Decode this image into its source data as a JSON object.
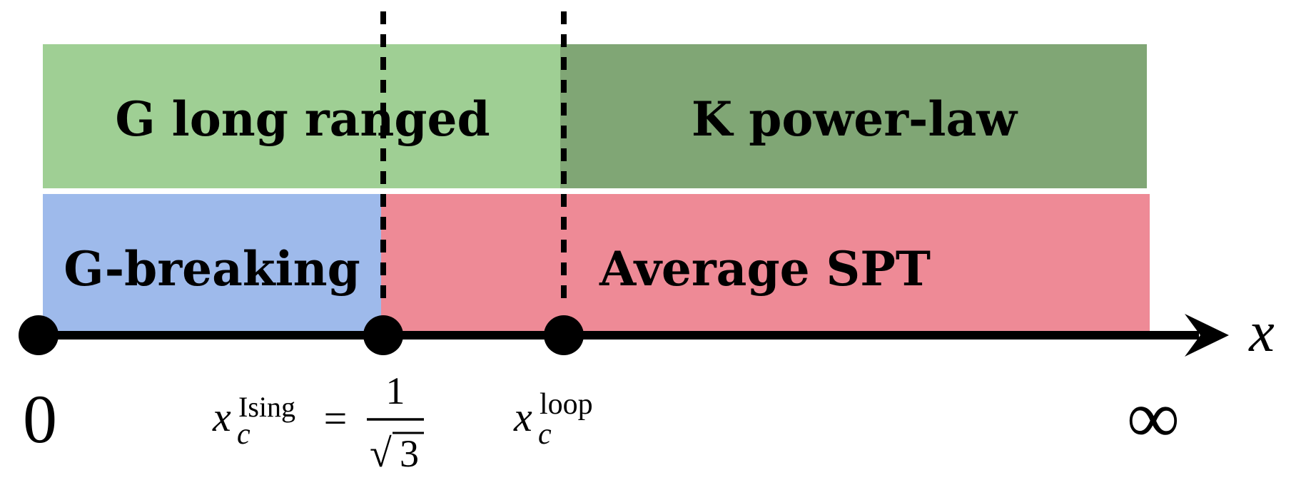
{
  "regions": {
    "top_left": {
      "label": "G long ranged",
      "color": "#9FCF94"
    },
    "top_right": {
      "label": "K power-law",
      "color": "#80A675"
    },
    "bottom_left": {
      "label": "G-breaking",
      "color": "#9EBAEB"
    },
    "bottom_right": {
      "label": "Average SPT",
      "color": "#EE8A96"
    }
  },
  "axis": {
    "variable": "x",
    "origin_label": "0",
    "end_label": "∞",
    "color": "#000000"
  },
  "critical_points": {
    "ising": {
      "symbol": "x",
      "subscript": "c",
      "superscript": "Ising",
      "equals": "=",
      "numerator": "1",
      "radical": "√",
      "radicand": "3"
    },
    "loop": {
      "symbol": "x",
      "subscript": "c",
      "superscript": "loop"
    }
  }
}
